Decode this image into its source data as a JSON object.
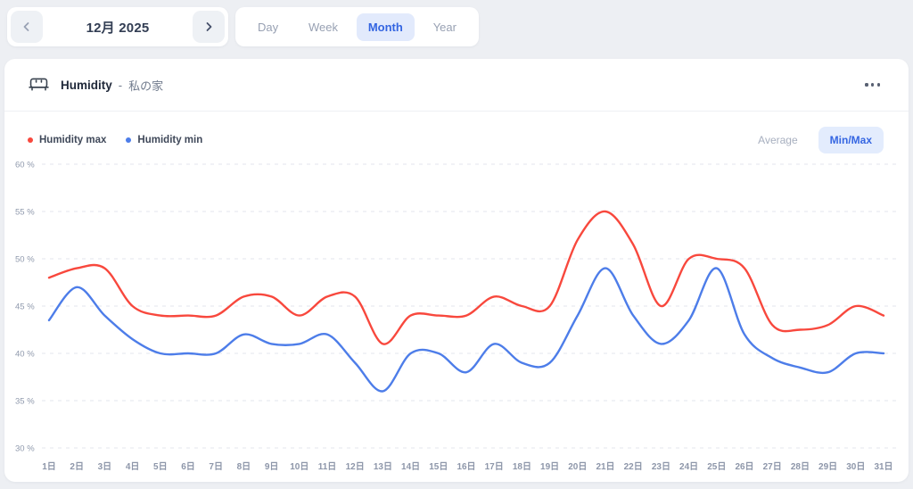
{
  "top_bar": {
    "date_nav": {
      "prev_icon": "chevron-left",
      "label": "12月 2025",
      "next_icon": "chevron-right"
    },
    "range_tabs": {
      "items": [
        {
          "label": "Day",
          "active": false
        },
        {
          "label": "Week",
          "active": false
        },
        {
          "label": "Month",
          "active": true
        },
        {
          "label": "Year",
          "active": false
        }
      ]
    }
  },
  "card": {
    "header": {
      "icon": "sofa-icon",
      "title": "Humidity",
      "separator": "-",
      "location": "私の家",
      "menu_icon": "ellipsis-menu"
    },
    "legend": [
      {
        "label": "Humidity max",
        "color": "#f8483d"
      },
      {
        "label": "Humidity min",
        "color": "#4d7de9"
      }
    ],
    "mode_toggle": {
      "options": [
        {
          "label": "Average",
          "active": false
        },
        {
          "label": "Min/Max",
          "active": true
        }
      ]
    }
  },
  "chart_data": {
    "type": "line",
    "title": "Humidity - 私の家",
    "x": [
      1,
      2,
      3,
      4,
      5,
      6,
      7,
      8,
      9,
      10,
      11,
      12,
      13,
      14,
      15,
      16,
      17,
      18,
      19,
      20,
      21,
      22,
      23,
      24,
      25,
      26,
      27,
      28,
      29,
      30,
      31
    ],
    "x_tick_labels": [
      "1日",
      "2日",
      "3日",
      "4日",
      "5日",
      "6日",
      "7日",
      "8日",
      "9日",
      "10日",
      "11日",
      "12日",
      "13日",
      "14日",
      "15日",
      "16日",
      "17日",
      "18日",
      "19日",
      "20日",
      "21日",
      "22日",
      "23日",
      "24日",
      "25日",
      "26日",
      "27日",
      "28日",
      "29日",
      "30日",
      "31日"
    ],
    "series": [
      {
        "name": "Humidity max",
        "color": "#f8483d",
        "values": [
          48,
          49,
          49,
          45,
          44,
          44,
          44,
          46,
          46,
          44,
          46,
          46,
          41,
          44,
          44,
          44,
          46,
          45,
          45,
          52,
          55,
          51.5,
          45,
          50,
          50,
          49,
          43,
          42.5,
          43,
          45,
          44
        ]
      },
      {
        "name": "Humidity min",
        "color": "#4d7de9",
        "values": [
          43.5,
          47,
          44,
          41.5,
          40,
          40,
          40,
          42,
          41,
          41,
          42,
          39,
          36,
          40,
          40,
          38,
          41,
          39,
          39,
          44,
          49,
          44,
          41,
          43.5,
          49,
          42,
          39.5,
          38.5,
          38,
          40,
          40
        ]
      }
    ],
    "ylabel": "",
    "xlabel": "",
    "ylim": [
      30,
      60
    ],
    "y_ticks": [
      60,
      55,
      50,
      45,
      40,
      35,
      30
    ],
    "y_tick_suffix": " %",
    "grid": "dashed-horizontal",
    "legend_position": "top-left",
    "smooth": true
  },
  "colors": {
    "page_bg": "#edeff3",
    "card_bg": "#ffffff",
    "accent_blue": "#3465e1",
    "pill_bg": "#e2eafc",
    "grid_line": "#e3e6ec",
    "axis_label": "#909aad",
    "x_axis_label": "#8d96a9",
    "series_max": "#f8483d",
    "series_min": "#4d7de9"
  }
}
